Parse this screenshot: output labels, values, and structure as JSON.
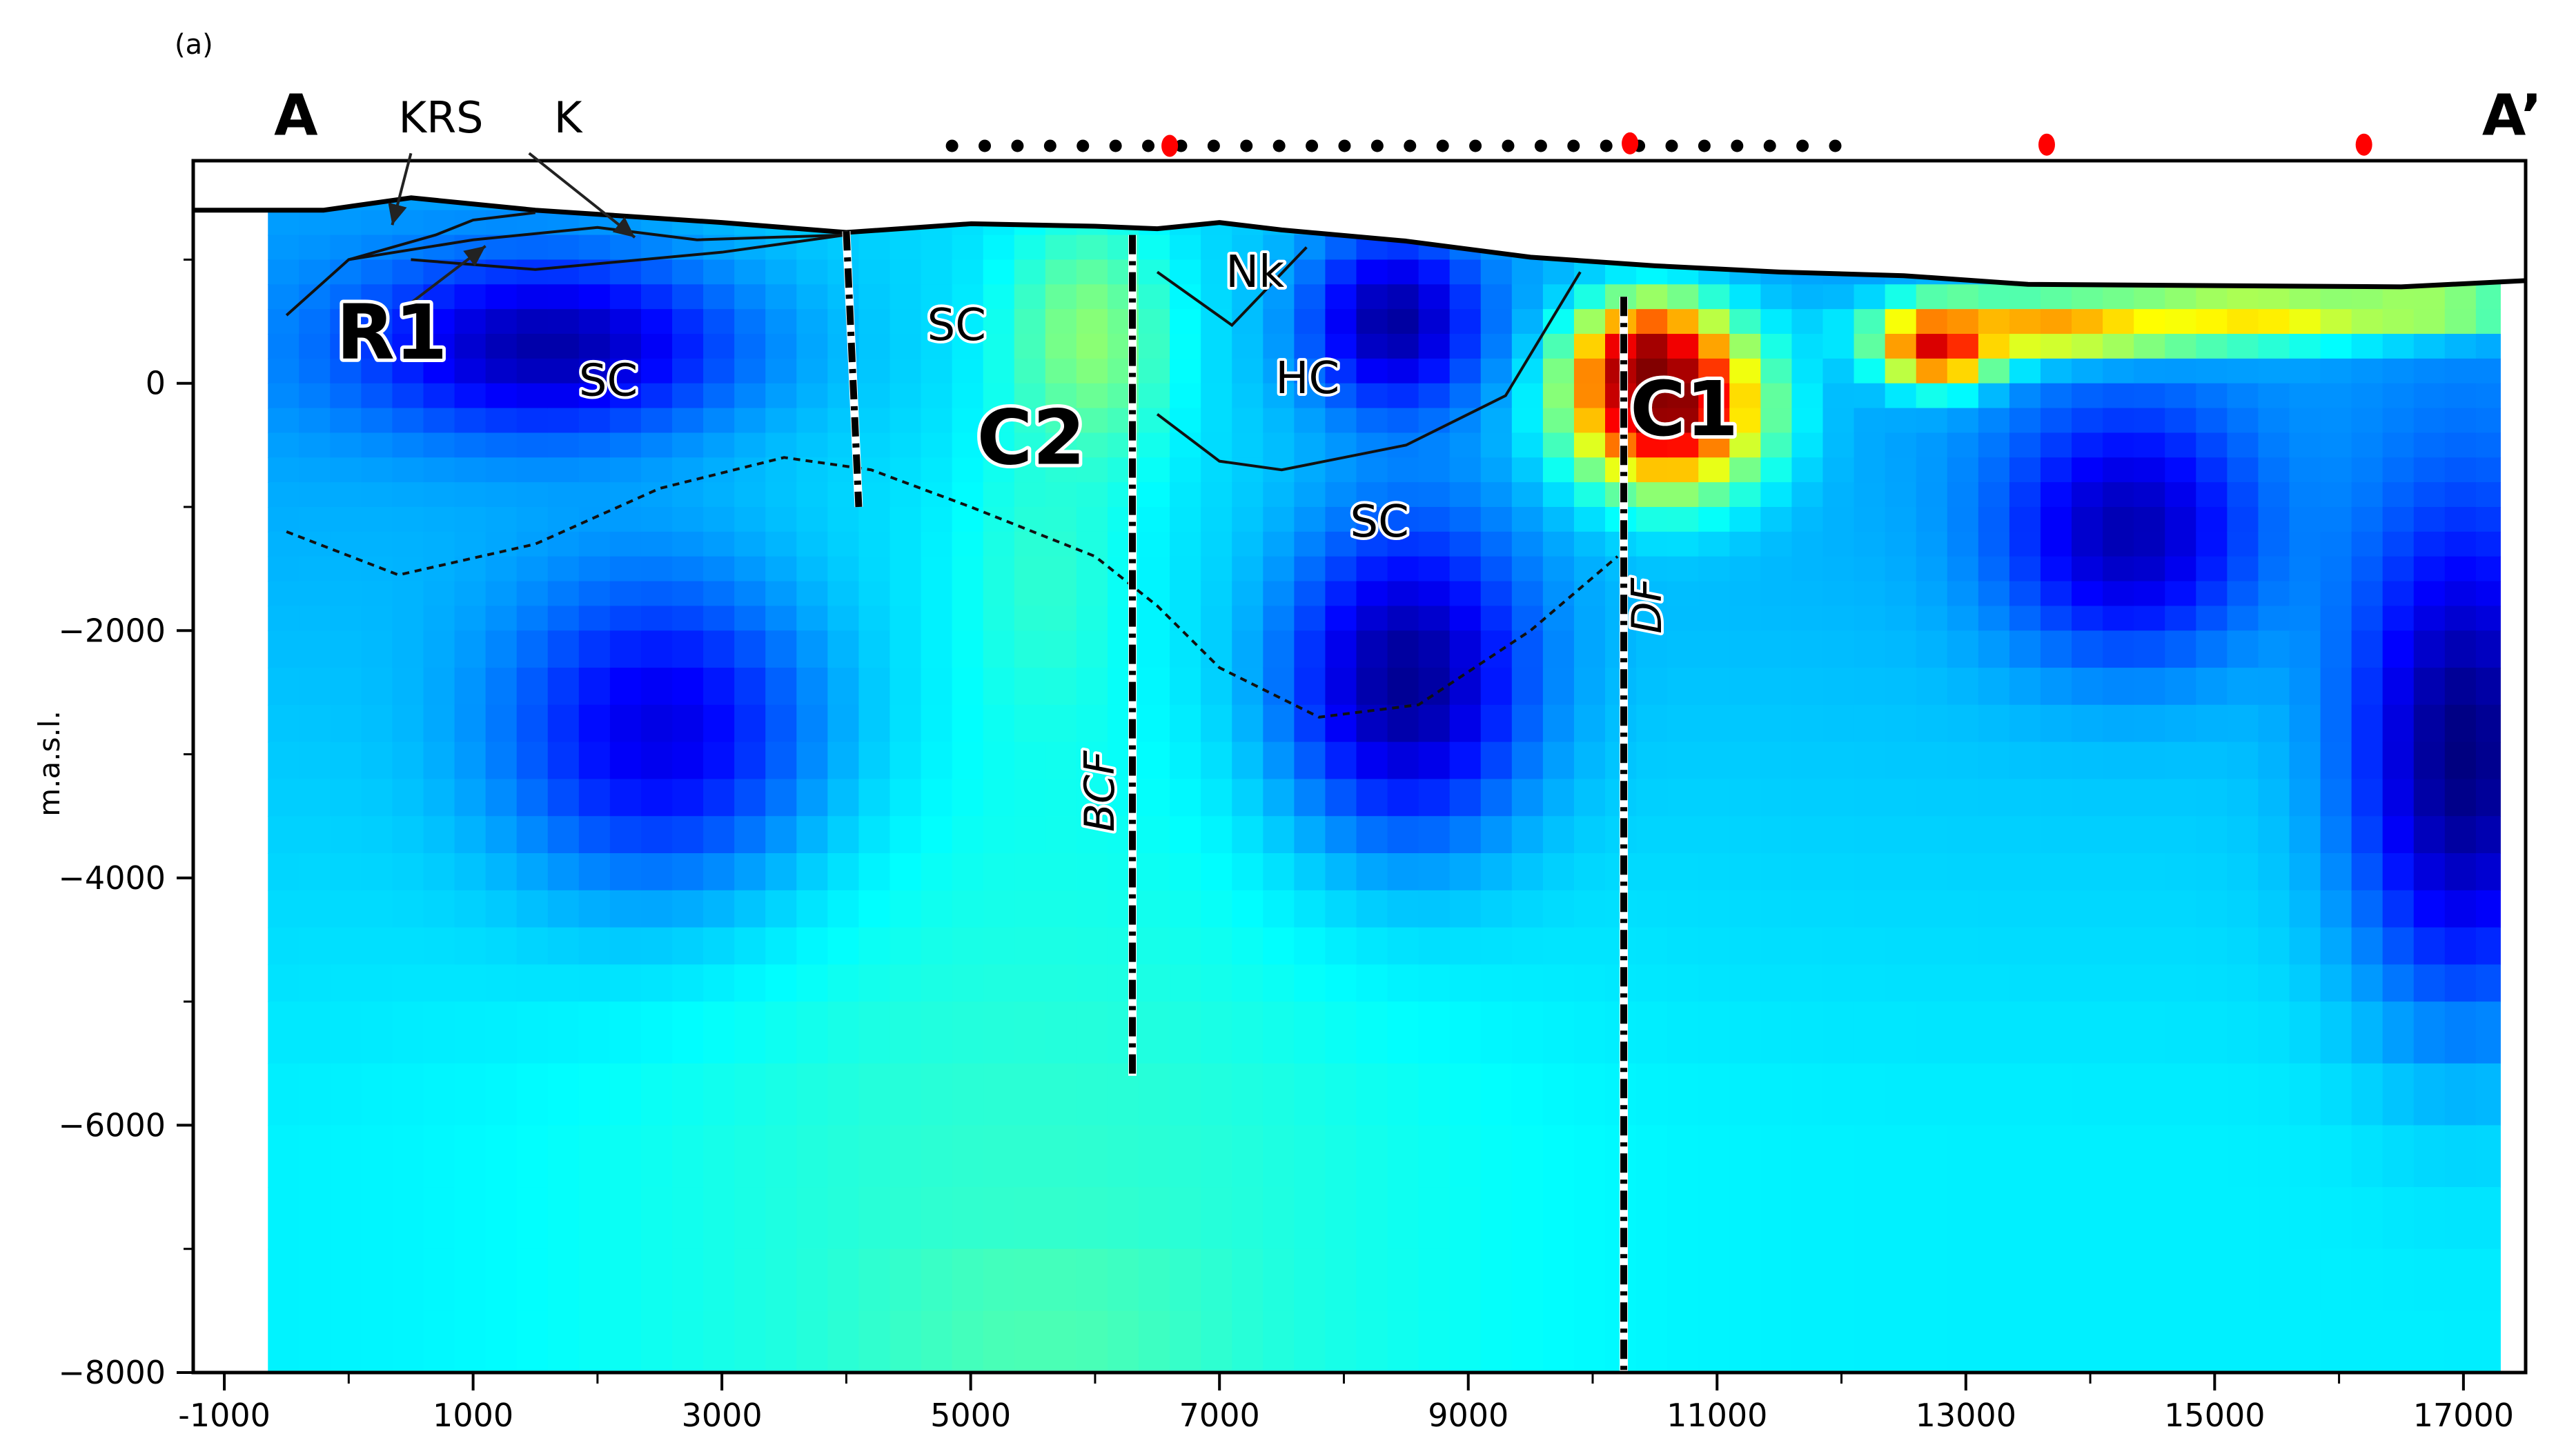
{
  "panel_label": "(a)",
  "chart_data": {
    "type": "heatmap",
    "title": "",
    "xlabel": "",
    "ylabel": "m.a.s.l.",
    "xlim": [
      -1250,
      17500
    ],
    "ylim": [
      -8000,
      1800
    ],
    "x_ticks": [
      -1000,
      1000,
      3000,
      5000,
      7000,
      9000,
      11000,
      13000,
      15000,
      17000
    ],
    "x_tick_labels": [
      "-1000",
      "1000",
      "3000",
      "5000",
      "7000",
      "9000",
      "11000",
      "13000",
      "15000",
      "17000"
    ],
    "x_minor_ticks": [
      0,
      2000,
      4000,
      6000,
      8000,
      10000,
      12000,
      14000,
      16000
    ],
    "y_ticks": [
      -8000,
      -6000,
      -4000,
      -2000,
      0
    ],
    "y_tick_labels": [
      "−8000",
      "−6000",
      "−4000",
      "−2000",
      "0"
    ],
    "y_minor_ticks": [
      -7000,
      -5000,
      -3000,
      -1000,
      1000
    ],
    "grid": false,
    "colormap": "jet (blue = low, red = high)",
    "model_extent": {
      "x": [
        -650,
        17300
      ],
      "y_bottom": -8000
    },
    "profile_ends": {
      "start": "A",
      "end": "A’"
    },
    "topography": [
      [
        -1250,
        1400
      ],
      [
        -200,
        1400
      ],
      [
        500,
        1500
      ],
      [
        1500,
        1400
      ],
      [
        3000,
        1300
      ],
      [
        4000,
        1220
      ],
      [
        5000,
        1290
      ],
      [
        6000,
        1270
      ],
      [
        6500,
        1250
      ],
      [
        7000,
        1300
      ],
      [
        7500,
        1240
      ],
      [
        8500,
        1150
      ],
      [
        9500,
        1020
      ],
      [
        10500,
        950
      ],
      [
        11500,
        900
      ],
      [
        12500,
        870
      ],
      [
        13500,
        800
      ],
      [
        15000,
        790
      ],
      [
        16500,
        780
      ],
      [
        17500,
        830
      ]
    ],
    "stations": {
      "dense_line": {
        "from": 4850,
        "to": 11950,
        "count": 28,
        "elevation": 1920,
        "color": "#000000"
      },
      "markers": [
        {
          "x": 6600,
          "elevation": 1920,
          "color": "#ff0000"
        },
        {
          "x": 10300,
          "elevation": 1940,
          "color": "#ff0000"
        },
        {
          "x": 13650,
          "elevation": 1930,
          "color": "#ff0000"
        },
        {
          "x": 16200,
          "elevation": 1930,
          "color": "#ff0000"
        }
      ]
    },
    "anomalies": [
      {
        "name": "C1",
        "x": 10600,
        "y": -200,
        "value": 1.0,
        "rx": 750,
        "ry": 650
      },
      {
        "name": "C1-shallow",
        "x": 10450,
        "y": 150,
        "value": 1.0,
        "rx": 500,
        "ry": 450
      },
      {
        "name": "east-shallow",
        "x": 12800,
        "y": 300,
        "value": 1.0,
        "rx": 450,
        "ry": 300
      },
      {
        "name": "east-band-1",
        "x": 13800,
        "y": 450,
        "value": 0.78,
        "rx": 1200,
        "ry": 240
      },
      {
        "name": "east-band-2",
        "x": 15300,
        "y": 550,
        "value": 0.68,
        "rx": 1200,
        "ry": 220
      },
      {
        "name": "east-band-3",
        "x": 16700,
        "y": 600,
        "value": 0.6,
        "rx": 900,
        "ry": 200
      },
      {
        "name": "C2",
        "x": 5950,
        "y": 300,
        "value": 0.52,
        "rx": 650,
        "ry": 1000
      },
      {
        "name": "C2-deep",
        "x": 5600,
        "y": -1600,
        "value": 0.42,
        "rx": 650,
        "ry": 1300
      },
      {
        "name": "deep-center",
        "x": 5600,
        "y": -7600,
        "value": 0.45,
        "rx": 1200,
        "ry": 600
      },
      {
        "name": "R1",
        "x": 1600,
        "y": 300,
        "value": 0.04,
        "rx": 1500,
        "ry": 700
      },
      {
        "name": "NW-low",
        "x": 2500,
        "y": -2800,
        "value": 0.1,
        "rx": 1300,
        "ry": 1300
      },
      {
        "name": "HC",
        "x": 8400,
        "y": 500,
        "value": 0.03,
        "rx": 700,
        "ry": 700
      },
      {
        "name": "deep-SC",
        "x": 8500,
        "y": -2400,
        "value": 0.02,
        "rx": 1000,
        "ry": 1300
      },
      {
        "name": "E-low-1",
        "x": 14300,
        "y": -1200,
        "value": 0.05,
        "rx": 1000,
        "ry": 1000
      },
      {
        "name": "E-low-2",
        "x": 17000,
        "y": -3000,
        "value": 0.0,
        "rx": 900,
        "ry": 2000
      }
    ],
    "faults": [
      {
        "name": "BCF",
        "points": [
          [
            6300,
            1200
          ],
          [
            6300,
            -5600
          ]
        ]
      },
      {
        "name": "DF",
        "points": [
          [
            10250,
            700
          ],
          [
            10250,
            -8000
          ]
        ]
      },
      {
        "name": "",
        "points": [
          [
            4000,
            1230
          ],
          [
            4100,
            -1000
          ]
        ]
      }
    ],
    "contacts": {
      "solid": [
        [
          [
            -500,
            550
          ],
          [
            0,
            1000
          ],
          [
            1000,
            1160
          ],
          [
            2000,
            1260
          ],
          [
            2800,
            1160
          ],
          [
            4000,
            1200
          ]
        ],
        [
          [
            500,
            1000
          ],
          [
            1500,
            920
          ],
          [
            3000,
            1060
          ],
          [
            4000,
            1200
          ]
        ],
        [
          [
            0,
            1000
          ],
          [
            700,
            1200
          ],
          [
            1000,
            1320
          ],
          [
            1500,
            1380
          ]
        ],
        [
          [
            6500,
            900
          ],
          [
            7100,
            470
          ],
          [
            7700,
            1100
          ]
        ],
        [
          [
            6500,
            -250
          ],
          [
            7000,
            -630
          ],
          [
            7500,
            -700
          ],
          [
            8500,
            -500
          ],
          [
            9300,
            -100
          ],
          [
            9900,
            900
          ]
        ]
      ],
      "dashed": [
        [
          [
            -500,
            -1200
          ],
          [
            400,
            -1550
          ],
          [
            1500,
            -1300
          ],
          [
            2500,
            -850
          ],
          [
            3500,
            -600
          ],
          [
            4200,
            -700
          ],
          [
            5000,
            -1000
          ],
          [
            6000,
            -1400
          ],
          [
            6500,
            -1800
          ],
          [
            7000,
            -2300
          ],
          [
            7800,
            -2700
          ],
          [
            8600,
            -2600
          ],
          [
            9500,
            -2000
          ],
          [
            10200,
            -1400
          ]
        ]
      ]
    },
    "annotations": [
      {
        "text": "A",
        "x": -600,
        "y": 2010,
        "style": "end-label"
      },
      {
        "text": "A’",
        "x": 17150,
        "y": 2010,
        "style": "end-label"
      },
      {
        "text": "KRS",
        "x": 400,
        "y": 2030,
        "style": "label"
      },
      {
        "text": "K",
        "x": 1650,
        "y": 2030,
        "style": "label"
      },
      {
        "text": "R1",
        "x": -100,
        "y": 200,
        "style": "big-outline"
      },
      {
        "text": "SC",
        "x": 1850,
        "y": -100,
        "style": "outline"
      },
      {
        "text": "SC",
        "x": 4650,
        "y": 350,
        "style": "outline"
      },
      {
        "text": "C2",
        "x": 5050,
        "y": -650,
        "style": "big-outline"
      },
      {
        "text": "Nk",
        "x": 7050,
        "y": 780,
        "style": "outline"
      },
      {
        "text": "HC",
        "x": 7450,
        "y": -80,
        "style": "outline"
      },
      {
        "text": "SC",
        "x": 8050,
        "y": -1240,
        "style": "outline"
      },
      {
        "text": "C1",
        "x": 10300,
        "y": -420,
        "style": "big-outline"
      },
      {
        "text": "BCF",
        "x": 6150,
        "y": -3300,
        "style": "italic-rotated"
      },
      {
        "text": "DF",
        "x": 10550,
        "y": -1800,
        "style": "italic-rotated"
      }
    ],
    "arrows": [
      {
        "from": [
          500,
          1860
        ],
        "to": [
          350,
          1280
        ]
      },
      {
        "from": [
          1450,
          1860
        ],
        "to": [
          2300,
          1180
        ]
      },
      {
        "from": [
          500,
          650
        ],
        "to": [
          1100,
          1110
        ]
      }
    ]
  }
}
